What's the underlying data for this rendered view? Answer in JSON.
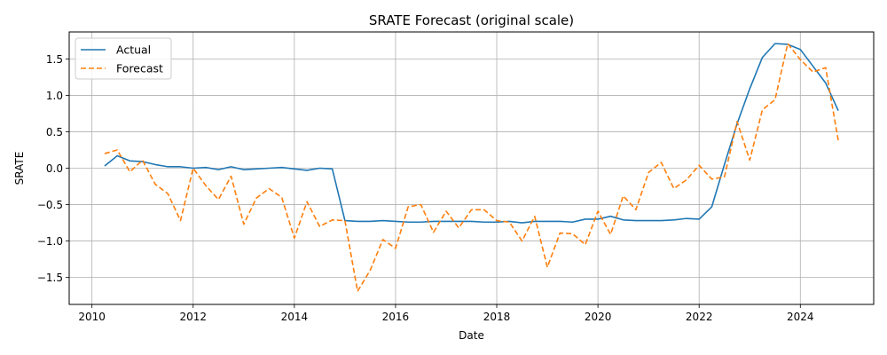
{
  "chart_data": {
    "type": "line",
    "title": "SRATE Forecast (original scale)",
    "xlabel": "Date",
    "ylabel": "SRATE",
    "xlim": [
      2009.55,
      2025.45
    ],
    "ylim": [
      -1.87,
      1.87
    ],
    "x_ticks": [
      2010,
      2012,
      2014,
      2016,
      2018,
      2020,
      2022,
      2024
    ],
    "y_ticks": [
      -1.5,
      -1.0,
      -0.5,
      0.0,
      0.5,
      1.0,
      1.5
    ],
    "x_tick_labels": [
      "2010",
      "2012",
      "2014",
      "2016",
      "2018",
      "2020",
      "2022",
      "2024"
    ],
    "y_tick_labels": [
      "−1.5",
      "−1.0",
      "−0.5",
      "0.0",
      "0.5",
      "1.0",
      "1.5"
    ],
    "grid": true,
    "legend_position": "top-left",
    "series": [
      {
        "name": "Actual",
        "color": "#1f77b4",
        "style": "solid",
        "points": [
          [
            2010.25,
            0.03
          ],
          [
            2010.5,
            0.17
          ],
          [
            2010.75,
            0.1
          ],
          [
            2011.0,
            0.09
          ],
          [
            2011.25,
            0.05
          ],
          [
            2011.5,
            0.02
          ],
          [
            2011.75,
            0.02
          ],
          [
            2012.0,
            0.0
          ],
          [
            2012.25,
            0.01
          ],
          [
            2012.5,
            -0.02
          ],
          [
            2012.75,
            0.02
          ],
          [
            2013.0,
            -0.02
          ],
          [
            2013.25,
            -0.01
          ],
          [
            2013.5,
            0.0
          ],
          [
            2013.75,
            0.01
          ],
          [
            2014.0,
            -0.01
          ],
          [
            2014.25,
            -0.03
          ],
          [
            2014.5,
            0.0
          ],
          [
            2014.75,
            -0.01
          ],
          [
            2015.0,
            -0.72
          ],
          [
            2015.25,
            -0.73
          ],
          [
            2015.5,
            -0.73
          ],
          [
            2015.75,
            -0.72
          ],
          [
            2016.0,
            -0.73
          ],
          [
            2016.25,
            -0.74
          ],
          [
            2016.5,
            -0.74
          ],
          [
            2016.75,
            -0.73
          ],
          [
            2017.0,
            -0.73
          ],
          [
            2017.25,
            -0.73
          ],
          [
            2017.5,
            -0.73
          ],
          [
            2017.75,
            -0.74
          ],
          [
            2018.0,
            -0.74
          ],
          [
            2018.25,
            -0.73
          ],
          [
            2018.5,
            -0.75
          ],
          [
            2018.75,
            -0.73
          ],
          [
            2019.0,
            -0.73
          ],
          [
            2019.25,
            -0.73
          ],
          [
            2019.5,
            -0.74
          ],
          [
            2019.75,
            -0.7
          ],
          [
            2020.0,
            -0.7
          ],
          [
            2020.25,
            -0.66
          ],
          [
            2020.5,
            -0.71
          ],
          [
            2020.75,
            -0.72
          ],
          [
            2021.0,
            -0.72
          ],
          [
            2021.25,
            -0.72
          ],
          [
            2021.5,
            -0.71
          ],
          [
            2021.75,
            -0.69
          ],
          [
            2022.0,
            -0.7
          ],
          [
            2022.25,
            -0.53
          ],
          [
            2022.5,
            0.05
          ],
          [
            2022.75,
            0.61
          ],
          [
            2023.0,
            1.09
          ],
          [
            2023.25,
            1.52
          ],
          [
            2023.5,
            1.71
          ],
          [
            2023.75,
            1.7
          ],
          [
            2024.0,
            1.63
          ],
          [
            2024.25,
            1.4
          ],
          [
            2024.5,
            1.17
          ],
          [
            2024.75,
            0.79
          ]
        ]
      },
      {
        "name": "Forecast",
        "color": "#ff7f0e",
        "style": "dashed",
        "points": [
          [
            2010.25,
            0.2
          ],
          [
            2010.5,
            0.25
          ],
          [
            2010.75,
            -0.05
          ],
          [
            2011.0,
            0.11
          ],
          [
            2011.25,
            -0.22
          ],
          [
            2011.5,
            -0.35
          ],
          [
            2011.75,
            -0.72
          ],
          [
            2012.0,
            0.0
          ],
          [
            2012.25,
            -0.24
          ],
          [
            2012.5,
            -0.43
          ],
          [
            2012.75,
            -0.11
          ],
          [
            2013.0,
            -0.77
          ],
          [
            2013.25,
            -0.41
          ],
          [
            2013.5,
            -0.28
          ],
          [
            2013.75,
            -0.4
          ],
          [
            2014.0,
            -0.96
          ],
          [
            2014.25,
            -0.46
          ],
          [
            2014.5,
            -0.8
          ],
          [
            2014.75,
            -0.71
          ],
          [
            2015.0,
            -0.72
          ],
          [
            2015.25,
            -1.69
          ],
          [
            2015.5,
            -1.4
          ],
          [
            2015.75,
            -0.98
          ],
          [
            2016.0,
            -1.1
          ],
          [
            2016.25,
            -0.53
          ],
          [
            2016.5,
            -0.5
          ],
          [
            2016.75,
            -0.88
          ],
          [
            2017.0,
            -0.59
          ],
          [
            2017.25,
            -0.82
          ],
          [
            2017.5,
            -0.57
          ],
          [
            2017.75,
            -0.57
          ],
          [
            2018.0,
            -0.72
          ],
          [
            2018.25,
            -0.74
          ],
          [
            2018.5,
            -1.0
          ],
          [
            2018.75,
            -0.66
          ],
          [
            2019.0,
            -1.36
          ],
          [
            2019.25,
            -0.89
          ],
          [
            2019.5,
            -0.9
          ],
          [
            2019.75,
            -1.05
          ],
          [
            2020.0,
            -0.59
          ],
          [
            2020.25,
            -0.91
          ],
          [
            2020.5,
            -0.38
          ],
          [
            2020.75,
            -0.57
          ],
          [
            2021.0,
            -0.06
          ],
          [
            2021.25,
            0.08
          ],
          [
            2021.5,
            -0.28
          ],
          [
            2021.75,
            -0.16
          ],
          [
            2022.0,
            0.04
          ],
          [
            2022.25,
            -0.15
          ],
          [
            2022.5,
            -0.12
          ],
          [
            2022.75,
            0.64
          ],
          [
            2023.0,
            0.11
          ],
          [
            2023.25,
            0.8
          ],
          [
            2023.5,
            0.94
          ],
          [
            2023.75,
            1.71
          ],
          [
            2024.0,
            1.49
          ],
          [
            2024.25,
            1.32
          ],
          [
            2024.5,
            1.38
          ],
          [
            2024.75,
            0.38
          ]
        ]
      }
    ]
  }
}
